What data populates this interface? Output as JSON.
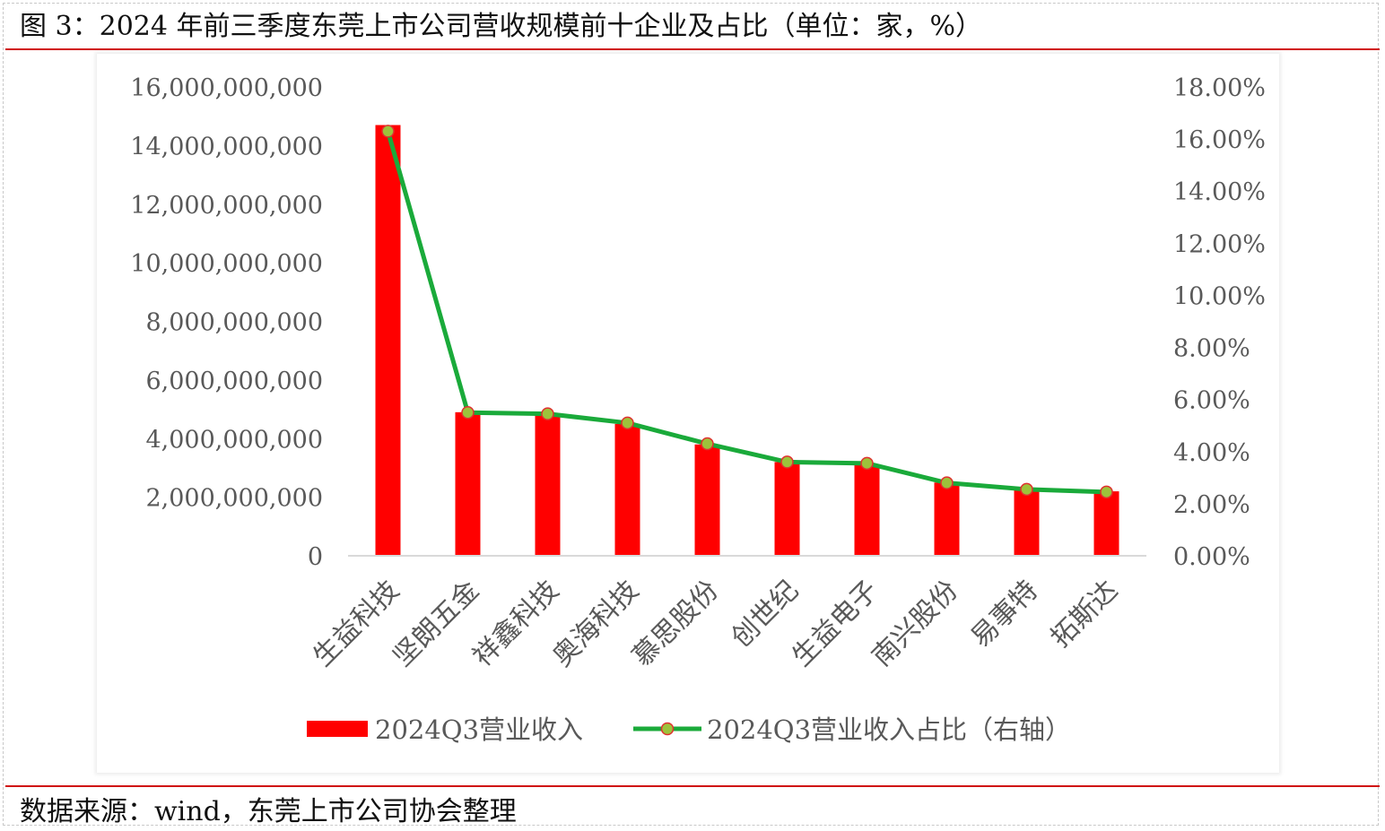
{
  "title": "图 3：2024 年前三季度东莞上市公司营收规模前十企业及占比（单位：家，%）",
  "source": "数据来源：wind，东莞上市公司协会整理",
  "colors": {
    "bar": "#ff0000",
    "line": "#1aaa3a",
    "marker_fill": "#9dc23b",
    "marker_edge": "#e03030",
    "rule": "#d01010"
  },
  "chart_data": {
    "type": "bar",
    "categories": [
      "生益科技",
      "坚朗五金",
      "祥鑫科技",
      "奥海科技",
      "慕思股份",
      "创世纪",
      "生益电子",
      "南兴股份",
      "易事特",
      "拓斯达"
    ],
    "series": [
      {
        "name": "2024Q3营业收入",
        "type": "bar",
        "axis": "left",
        "values": [
          14700000000,
          4900000000,
          4850000000,
          4500000000,
          3800000000,
          3200000000,
          3100000000,
          2500000000,
          2300000000,
          2200000000
        ]
      },
      {
        "name": "2024Q3营业收入占比（右轴）",
        "type": "line",
        "axis": "right",
        "values": [
          16.3,
          5.5,
          5.45,
          5.1,
          4.3,
          3.6,
          3.55,
          2.8,
          2.55,
          2.45
        ]
      }
    ],
    "y_left": {
      "ylim": [
        0,
        16000000000
      ],
      "ticks": [
        0,
        2000000000,
        4000000000,
        6000000000,
        8000000000,
        10000000000,
        12000000000,
        14000000000,
        16000000000
      ],
      "tick_labels": [
        "0",
        "2,000,000,000",
        "4,000,000,000",
        "6,000,000,000",
        "8,000,000,000",
        "10,000,000,000",
        "12,000,000,000",
        "14,000,000,000",
        "16,000,000,000"
      ]
    },
    "y_right": {
      "ylim": [
        0,
        18
      ],
      "ticks": [
        0,
        2,
        4,
        6,
        8,
        10,
        12,
        14,
        16,
        18
      ],
      "tick_labels": [
        "0.00%",
        "2.00%",
        "4.00%",
        "6.00%",
        "8.00%",
        "10.00%",
        "12.00%",
        "14.00%",
        "16.00%",
        "18.00%"
      ]
    },
    "grid": false,
    "legend_position": "bottom"
  }
}
